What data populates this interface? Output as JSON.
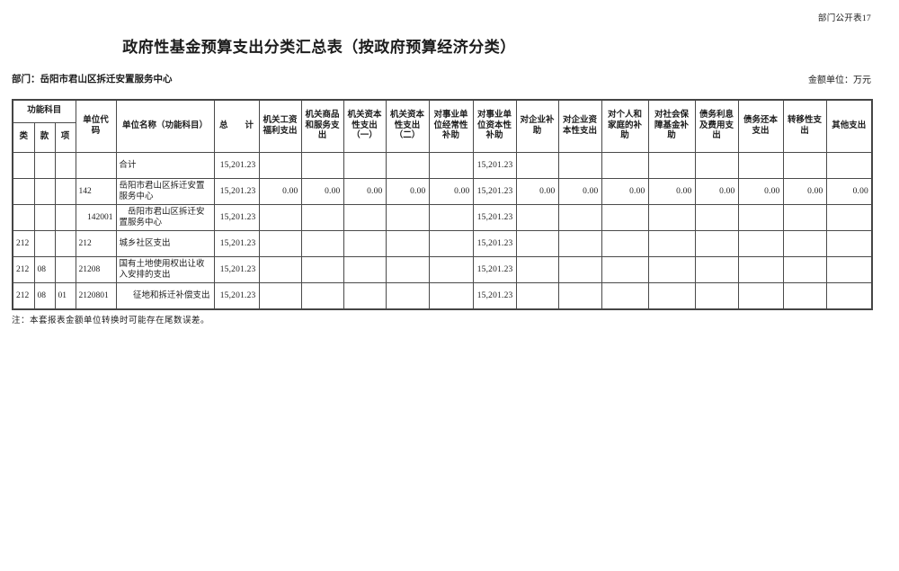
{
  "page": {
    "sheet_label": "部门公开表17",
    "title": "政府性基金预算支出分类汇总表（按政府预算经济分类）",
    "department_label": "部门：岳阳市君山区拆迁安置服务中心",
    "unit_label": "金额单位：万元",
    "note": "注：本套报表金额单位转换时可能存在尾数误差。"
  },
  "table": {
    "header": {
      "group_function": "功能科目",
      "sub_class": "类",
      "sub_section": "款",
      "sub_item": "项",
      "unit_code": "单位代\n码",
      "unit_name": "单位名称（功能科目）",
      "total": "总　　计",
      "econ_columns": [
        "机关工资福利支出",
        "机关商品和服务支出",
        "机关资本性支出（一）",
        "机关资本性支出（二）",
        "对事业单位经常性补助",
        "对事业单位资本性补助",
        "对企业补助",
        "对企业资本性支出",
        "对个人和家庭的补助",
        "对社会保障基金补助",
        "债务利息及费用支出",
        "债务还本支出",
        "转移性支出",
        "其他支出"
      ]
    },
    "rows": [
      {
        "cells": [
          "",
          "",
          "",
          "",
          "合计",
          "15,201.23",
          "",
          "",
          "",
          "",
          "",
          "15,201.23",
          "",
          "",
          "",
          "",
          "",
          "",
          "",
          ""
        ]
      },
      {
        "cells": [
          "",
          "",
          "",
          "142",
          "岳阳市君山区拆迁安置服务中心",
          "15,201.23",
          "0.00",
          "0.00",
          "0.00",
          "0.00",
          "0.00",
          "15,201.23",
          "0.00",
          "0.00",
          "0.00",
          "0.00",
          "0.00",
          "0.00",
          "0.00",
          "0.00"
        ]
      },
      {
        "cells": [
          "",
          "",
          "",
          "142001",
          "岳阳市君山区拆迁安置服务中心",
          "15,201.23",
          "",
          "",
          "",
          "",
          "",
          "15,201.23",
          "",
          "",
          "",
          "",
          "",
          "",
          "",
          ""
        ],
        "mods": {
          "3": "code-right",
          "4": "name-indent"
        }
      },
      {
        "cells": [
          "212",
          "",
          "",
          "212",
          "城乡社区支出",
          "15,201.23",
          "",
          "",
          "",
          "",
          "",
          "15,201.23",
          "",
          "",
          "",
          "",
          "",
          "",
          "",
          ""
        ]
      },
      {
        "cells": [
          "212",
          "08",
          "",
          "21208",
          "国有土地使用权出让收入安排的支出",
          "15,201.23",
          "",
          "",
          "",
          "",
          "",
          "15,201.23",
          "",
          "",
          "",
          "",
          "",
          "",
          "",
          ""
        ]
      },
      {
        "cells": [
          "212",
          "08",
          "01",
          "2120801",
          "征地和拆迁补偿支出",
          "15,201.23",
          "",
          "",
          "",
          "",
          "",
          "15,201.23",
          "",
          "",
          "",
          "",
          "",
          "",
          "",
          ""
        ],
        "mods": {
          "4": "name-right"
        }
      }
    ]
  }
}
